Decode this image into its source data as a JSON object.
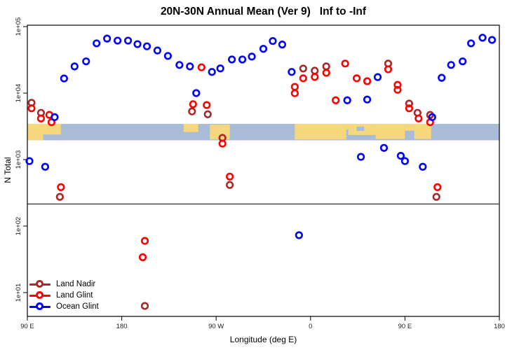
{
  "chart_data": {
    "type": "scatter",
    "title": "20N-30N Annual Mean (Ver 9)   Inf to -Inf",
    "xlabel": "Longitude (deg E)",
    "ylabel": "N Total",
    "x_axis": {
      "range": [
        90,
        540
      ],
      "ticks": [
        90,
        180,
        270,
        360,
        450,
        540
      ],
      "tick_labels": [
        "90 E",
        "180",
        "90 W",
        "0",
        "90 E",
        "180"
      ],
      "note": "longitude axis continues eastward and wraps past 360"
    },
    "y_axis": {
      "scale": "log10",
      "range": [
        4.4,
        105000
      ],
      "ticks": [
        100000,
        10000,
        1000,
        100,
        10
      ],
      "tick_labels": [
        "1e+05",
        "1e+04",
        "1e+03",
        "1e+02",
        "1e+01"
      ]
    },
    "grid": false,
    "legend_position": "bottom-left",
    "threshold_line_y": 215,
    "series": [
      {
        "name": "Land Nadir",
        "color": "#A52A2A",
        "points": [
          [
            94,
            7150
          ],
          [
            103,
            5050
          ],
          [
            121,
            275
          ],
          [
            202,
            6.3
          ],
          [
            247,
            5300
          ],
          [
            262,
            4800
          ],
          [
            276,
            2120
          ],
          [
            283,
            415
          ],
          [
            353,
            23400
          ],
          [
            364,
            21700
          ],
          [
            375,
            25200
          ],
          [
            434,
            27800
          ],
          [
            454,
            6950
          ],
          [
            462,
            5050
          ],
          [
            474,
            4700
          ],
          [
            480,
            275
          ]
        ]
      },
      {
        "name": "Land Glint",
        "color": "#FF0000",
        "points": [
          [
            94,
            5900
          ],
          [
            103,
            4150
          ],
          [
            111,
            4700
          ],
          [
            113,
            3650
          ],
          [
            122,
            385
          ],
          [
            200,
            34
          ],
          [
            202,
            60
          ],
          [
            248,
            6800
          ],
          [
            256,
            24400
          ],
          [
            261,
            6600
          ],
          [
            276,
            1740
          ],
          [
            283,
            555
          ],
          [
            345,
            12400
          ],
          [
            345,
            9950
          ],
          [
            353,
            16700
          ],
          [
            364,
            17500
          ],
          [
            375,
            20200
          ],
          [
            384,
            7800
          ],
          [
            393,
            27800
          ],
          [
            404,
            16700
          ],
          [
            414,
            15100
          ],
          [
            434,
            22800
          ],
          [
            443,
            13300
          ],
          [
            443,
            11200
          ],
          [
            454,
            5900
          ],
          [
            463,
            4150
          ],
          [
            474,
            3650
          ],
          [
            481,
            385
          ]
        ]
      },
      {
        "name": "Ocean Glint",
        "color": "#0000FF",
        "points": [
          [
            92,
            950
          ],
          [
            107,
            780
          ],
          [
            116,
            4350
          ],
          [
            125,
            16600
          ],
          [
            135,
            25200
          ],
          [
            146,
            30000
          ],
          [
            156,
            56000
          ],
          [
            166,
            66000
          ],
          [
            176,
            61500
          ],
          [
            186,
            61500
          ],
          [
            195,
            54500
          ],
          [
            204,
            50500
          ],
          [
            214,
            43700
          ],
          [
            224,
            36200
          ],
          [
            235,
            26500
          ],
          [
            245,
            25200
          ],
          [
            251,
            10000
          ],
          [
            266,
            20800
          ],
          [
            274,
            23500
          ],
          [
            285,
            32000
          ],
          [
            295,
            32000
          ],
          [
            304,
            35400
          ],
          [
            315,
            46300
          ],
          [
            324,
            60700
          ],
          [
            333,
            53700
          ],
          [
            342,
            20800
          ],
          [
            349,
            73
          ],
          [
            395,
            7800
          ],
          [
            408,
            1100
          ],
          [
            414,
            8000
          ],
          [
            424,
            17400
          ],
          [
            430,
            1500
          ],
          [
            446,
            1140
          ],
          [
            450,
            950
          ],
          [
            467,
            780
          ],
          [
            476,
            4350
          ],
          [
            485,
            17000
          ],
          [
            494,
            26500
          ],
          [
            505,
            30000
          ],
          [
            513,
            56000
          ],
          [
            524,
            68000
          ],
          [
            533,
            63000
          ]
        ]
      }
    ],
    "map_band": {
      "description": "20N-30N world map strip drawn across plot",
      "top_value": 3450,
      "bottom_value": 1950,
      "ocean_color": "#A9BCD7",
      "land_color": "#F5D77E",
      "land_segments": [
        {
          "lon": [
            90,
            105
          ],
          "f": [
            0,
            1
          ]
        },
        {
          "lon": [
            105,
            122
          ],
          "f": [
            0,
            0.65
          ]
        },
        {
          "lon": [
            239,
            253
          ],
          "f": [
            0,
            0.5
          ]
        },
        {
          "lon": [
            264,
            283
          ],
          "f": [
            0.05,
            0.95
          ]
        },
        {
          "lon": [
            345,
            394
          ],
          "f": [
            0,
            0.95
          ]
        },
        {
          "lon": [
            393,
            397
          ],
          "f": [
            0,
            0.35
          ]
        },
        {
          "lon": [
            396,
            422
          ],
          "f": [
            0,
            0.68
          ]
        },
        {
          "lon": [
            422,
            450
          ],
          "f": [
            0,
            0.92
          ]
        },
        {
          "lon": [
            450,
            459
          ],
          "f": [
            0,
            0.42
          ]
        },
        {
          "lon": [
            459,
            475
          ],
          "f": [
            0,
            0.92
          ]
        }
      ],
      "ocean_patches": [
        {
          "lon": [
            404,
            411
          ],
          "f": [
            0.17,
            0.43
          ]
        }
      ]
    }
  }
}
